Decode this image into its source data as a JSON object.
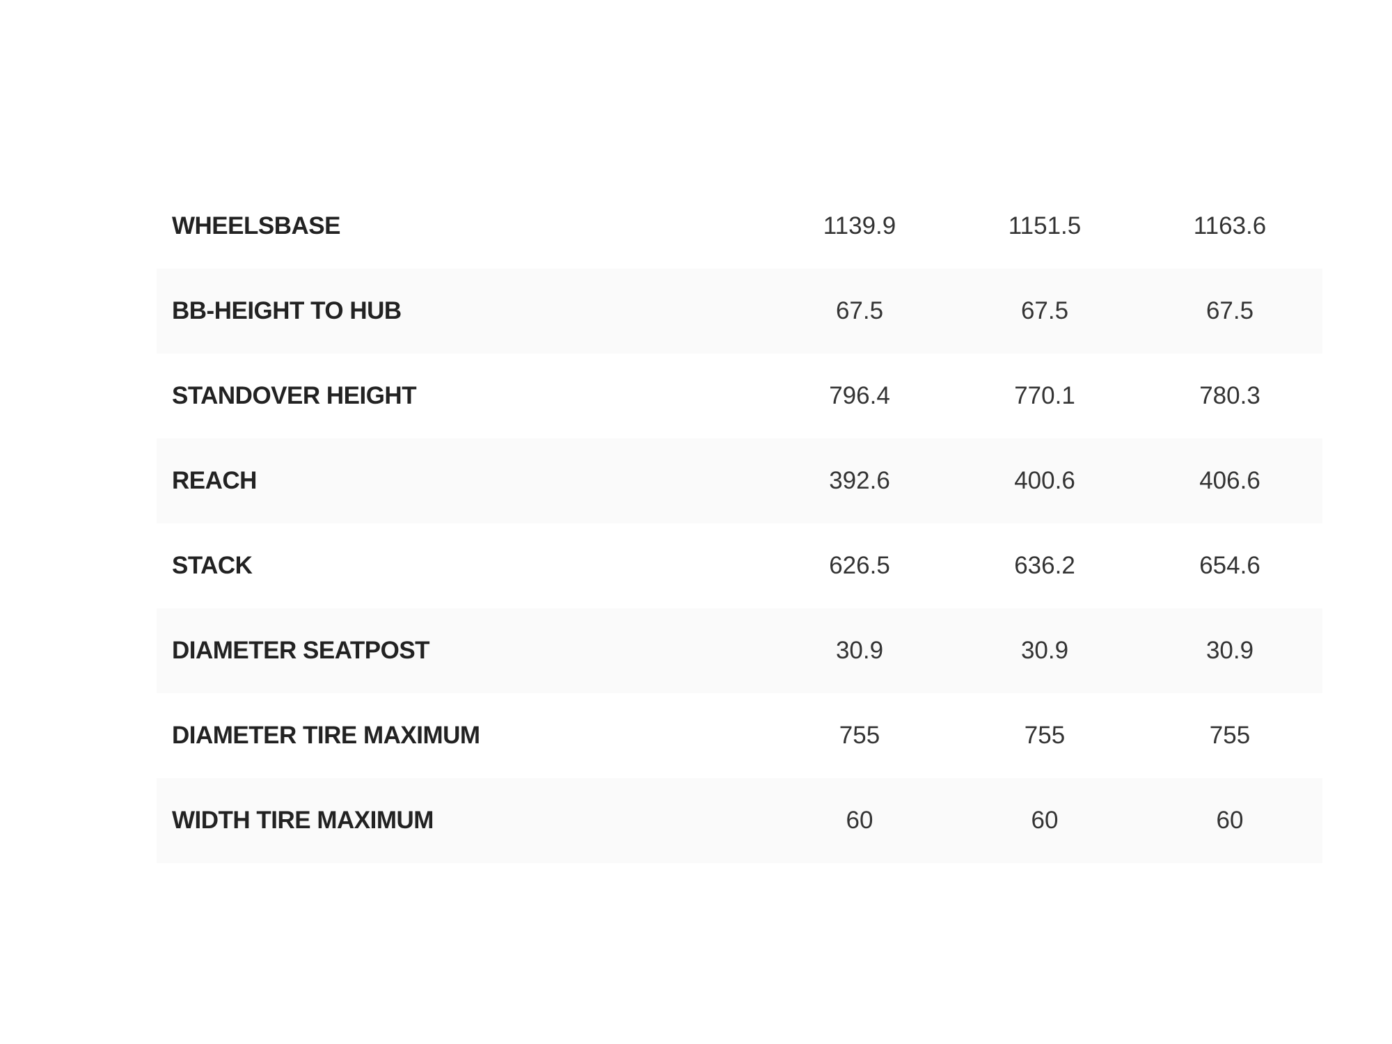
{
  "geometry_table": {
    "rows": [
      {
        "label": "WHEELSBASE",
        "values": [
          "1139.9",
          "1151.5",
          "1163.6"
        ]
      },
      {
        "label": "BB-HEIGHT TO HUB",
        "values": [
          "67.5",
          "67.5",
          "67.5"
        ]
      },
      {
        "label": "STANDOVER HEIGHT",
        "values": [
          "796.4",
          "770.1",
          "780.3"
        ]
      },
      {
        "label": "REACH",
        "values": [
          "392.6",
          "400.6",
          "406.6"
        ]
      },
      {
        "label": "STACK",
        "values": [
          "626.5",
          "636.2",
          "654.6"
        ]
      },
      {
        "label": "DIAMETER SEATPOST",
        "values": [
          "30.9",
          "30.9",
          "30.9"
        ]
      },
      {
        "label": "DIAMETER TIRE MAXIMUM",
        "values": [
          "755",
          "755",
          "755"
        ]
      },
      {
        "label": "WIDTH TIRE MAXIMUM",
        "values": [
          "60",
          "60",
          "60"
        ]
      }
    ],
    "stripe_color": "#fafafa",
    "text_color": "#222222"
  }
}
